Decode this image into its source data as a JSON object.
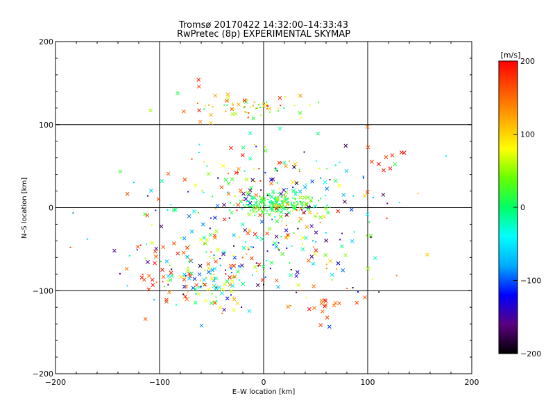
{
  "chart_data": {
    "type": "scatter",
    "title": "Tromsø 20170422 14:32:00–14:33:43",
    "subtitle": "RwPretec (8p) EXPERIMENTAL SKYMAP",
    "xlabel": "E–W location [km]",
    "ylabel": "N–S location [km]",
    "xlim": [
      -200,
      200
    ],
    "ylim": [
      -200,
      200
    ],
    "xticks": [
      "−200",
      "−100",
      "0",
      "100",
      "200"
    ],
    "yticks": [
      "−200",
      "−100",
      "0",
      "100",
      "200"
    ],
    "grid": "lines at ±100 and 0",
    "colorbar": {
      "label": "[m/s]",
      "range": [
        -200,
        200
      ],
      "ticks": [
        "200",
        "100",
        "0",
        "−100",
        "−200"
      ],
      "colormap": [
        "#000000",
        "#5b0080",
        "#0000ff",
        "#00aaff",
        "#00ffff",
        "#00ff66",
        "#66ff00",
        "#ffff00",
        "#ffaa00",
        "#ff5500",
        "#ff0000"
      ]
    },
    "point_groups": [
      {
        "marker": "x",
        "cx": -55,
        "cy": -90,
        "sx": 22,
        "sy": 18,
        "vmin": -120,
        "vmax": 200,
        "count": 60
      },
      {
        "marker": "dot",
        "cx": -60,
        "cy": -80,
        "sx": 25,
        "sy": 20,
        "vmin": -200,
        "vmax": 200,
        "count": 50
      },
      {
        "marker": "dot",
        "cx": 10,
        "cy": 5,
        "sx": 18,
        "sy": 6,
        "vmin": -20,
        "vmax": 40,
        "count": 160
      },
      {
        "marker": "x",
        "cx": 10,
        "cy": 3,
        "sx": 20,
        "sy": 8,
        "vmin": -20,
        "vmax": 60,
        "count": 50
      },
      {
        "marker": "dot",
        "cx": -20,
        "cy": 122,
        "sx": 25,
        "sy": 5,
        "vmin": -10,
        "vmax": 200,
        "count": 45
      },
      {
        "marker": "x",
        "cx": -30,
        "cy": 120,
        "sx": 35,
        "sy": 15,
        "vmin": 0,
        "vmax": 200,
        "count": 25
      },
      {
        "marker": "x",
        "cx": 60,
        "cy": -110,
        "sx": 15,
        "sy": 10,
        "vmin": 140,
        "vmax": 200,
        "count": 18
      },
      {
        "marker": "x",
        "cx": -90,
        "cy": -80,
        "sx": 20,
        "sy": 18,
        "vmin": 140,
        "vmax": 200,
        "count": 25
      },
      {
        "marker": "x",
        "cx": 0,
        "cy": -40,
        "sx": 60,
        "sy": 40,
        "vmin": -200,
        "vmax": 200,
        "count": 130
      },
      {
        "marker": "dot",
        "cx": 0,
        "cy": -30,
        "sx": 70,
        "sy": 45,
        "vmin": -200,
        "vmax": 200,
        "count": 120
      },
      {
        "marker": "x",
        "cx": 0,
        "cy": 30,
        "sx": 60,
        "sy": 25,
        "vmin": -200,
        "vmax": 200,
        "count": 60
      },
      {
        "marker": "dot",
        "cx": 20,
        "cy": 40,
        "sx": 50,
        "sy": 25,
        "vmin": -200,
        "vmax": 200,
        "count": 50
      },
      {
        "marker": "x",
        "cx": 110,
        "cy": 60,
        "sx": 20,
        "sy": 15,
        "vmin": 150,
        "vmax": 200,
        "count": 10
      }
    ]
  }
}
